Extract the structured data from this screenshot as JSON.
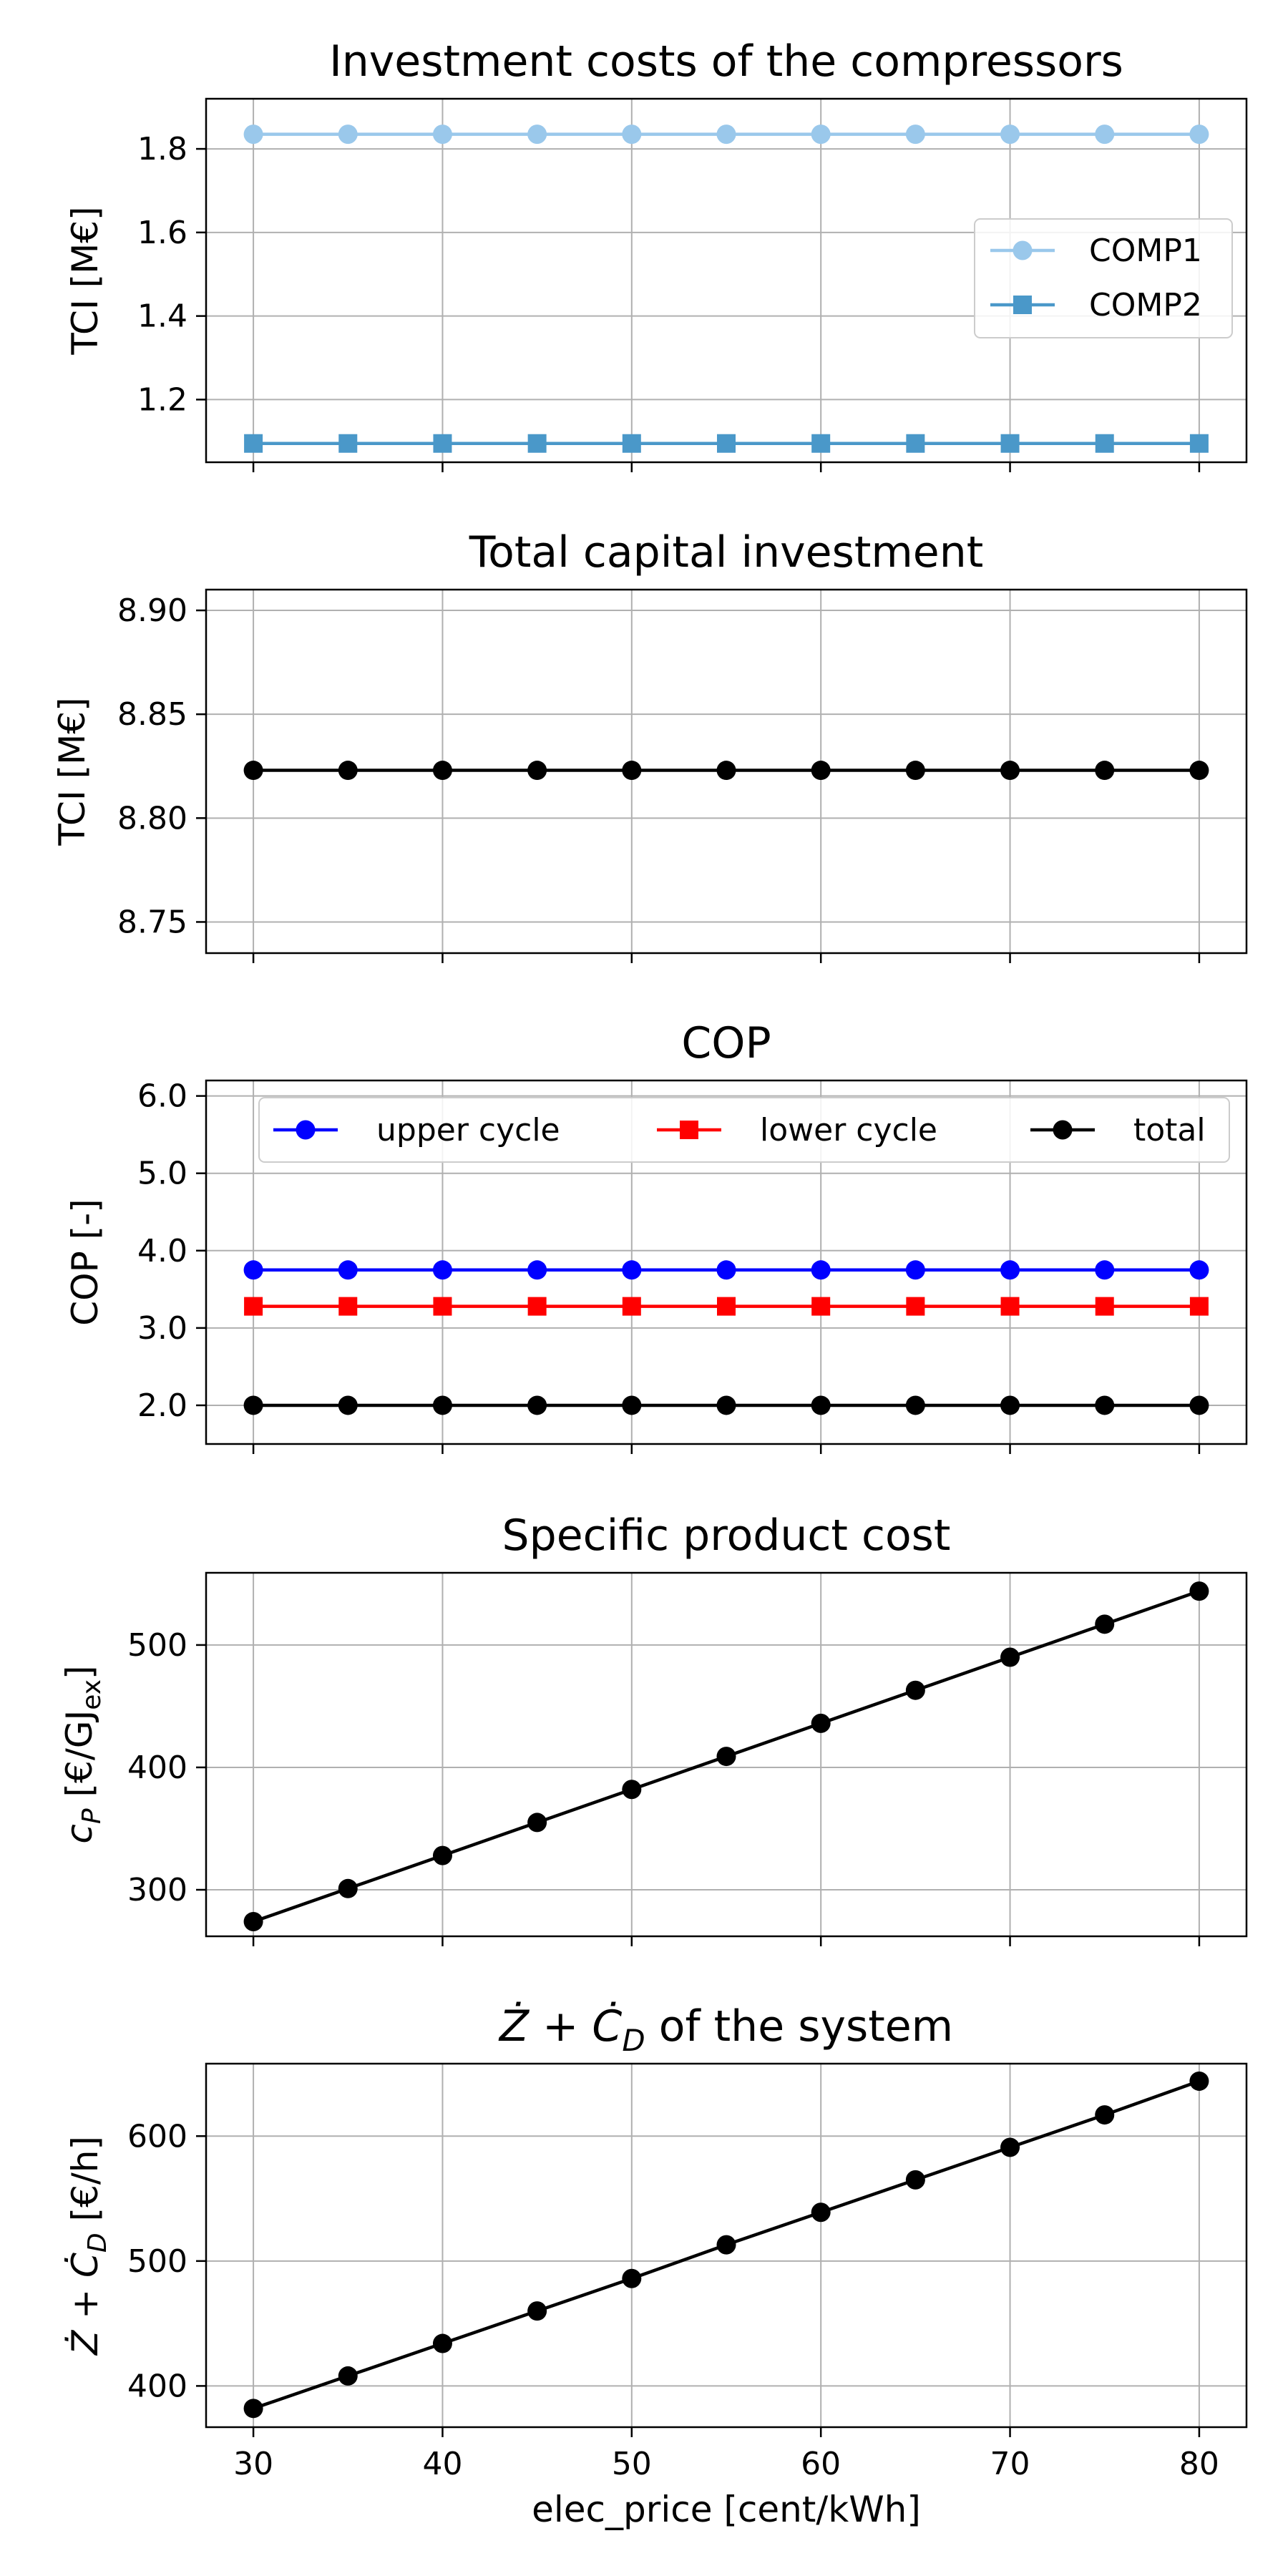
{
  "chart_data": [
    {
      "type": "line",
      "title": "Investment costs of the compressors",
      "xlabel": "",
      "ylabel": "TCI [M€]",
      "x": [
        30,
        35,
        40,
        45,
        50,
        55,
        60,
        65,
        70,
        75,
        80
      ],
      "xlim": [
        27.5,
        82.5
      ],
      "ylim": [
        1.05,
        1.92
      ],
      "yticks": [
        "1.2",
        "1.4",
        "1.6",
        "1.8"
      ],
      "xticks": [
        30,
        40,
        50,
        60,
        70,
        80
      ],
      "xticklabels_visible": false,
      "grid": true,
      "legend": "center-right",
      "series": [
        {
          "name": "COMP1",
          "color": "#9ac8eb",
          "marker": "circle",
          "values": [
            1.835,
            1.835,
            1.835,
            1.835,
            1.835,
            1.835,
            1.835,
            1.835,
            1.835,
            1.835,
            1.835
          ]
        },
        {
          "name": "COMP2",
          "color": "#4a98c9",
          "marker": "square",
          "values": [
            1.095,
            1.095,
            1.095,
            1.095,
            1.095,
            1.095,
            1.095,
            1.095,
            1.095,
            1.095,
            1.095
          ]
        }
      ]
    },
    {
      "type": "line",
      "title": "Total capital investment",
      "xlabel": "",
      "ylabel": "TCI [M€]",
      "x": [
        30,
        35,
        40,
        45,
        50,
        55,
        60,
        65,
        70,
        75,
        80
      ],
      "xlim": [
        27.5,
        82.5
      ],
      "ylim": [
        8.735,
        8.91
      ],
      "yticks": [
        "8.75",
        "8.80",
        "8.85",
        "8.90"
      ],
      "xticks": [
        30,
        40,
        50,
        60,
        70,
        80
      ],
      "xticklabels_visible": false,
      "grid": true,
      "legend": "none",
      "series": [
        {
          "color": "#000000",
          "marker": "circle",
          "values": [
            8.823,
            8.823,
            8.823,
            8.823,
            8.823,
            8.823,
            8.823,
            8.823,
            8.823,
            8.823,
            8.823
          ]
        }
      ]
    },
    {
      "type": "line",
      "title": "COP",
      "xlabel": "",
      "ylabel": "COP [-]",
      "x": [
        30,
        35,
        40,
        45,
        50,
        55,
        60,
        65,
        70,
        75,
        80
      ],
      "xlim": [
        27.5,
        82.5
      ],
      "ylim": [
        1.5,
        6.2
      ],
      "yticks": [
        "2.0",
        "3.0",
        "4.0",
        "5.0",
        "6.0"
      ],
      "xticks": [
        30,
        40,
        50,
        60,
        70,
        80
      ],
      "xticklabels_visible": false,
      "grid": true,
      "legend": "top (3 columns)",
      "series": [
        {
          "name": "upper cycle",
          "color": "#0000ff",
          "marker": "circle",
          "values": [
            3.75,
            3.75,
            3.75,
            3.75,
            3.75,
            3.75,
            3.75,
            3.75,
            3.75,
            3.75,
            3.75
          ]
        },
        {
          "name": "lower cycle",
          "color": "#ff0000",
          "marker": "square",
          "values": [
            3.28,
            3.28,
            3.28,
            3.28,
            3.28,
            3.28,
            3.28,
            3.28,
            3.28,
            3.28,
            3.28
          ]
        },
        {
          "name": "total",
          "color": "#000000",
          "marker": "circle",
          "values": [
            2.0,
            2.0,
            2.0,
            2.0,
            2.0,
            2.0,
            2.0,
            2.0,
            2.0,
            2.0,
            2.0
          ]
        }
      ]
    },
    {
      "type": "line",
      "title": "Specific product cost",
      "xlabel": "",
      "ylabel": "c_P [€/GJ_ex]",
      "x": [
        30,
        35,
        40,
        45,
        50,
        55,
        60,
        65,
        70,
        75,
        80
      ],
      "xlim": [
        27.5,
        82.5
      ],
      "ylim": [
        262,
        559
      ],
      "yticks": [
        "300",
        "400",
        "500"
      ],
      "xticks": [
        30,
        40,
        50,
        60,
        70,
        80
      ],
      "xticklabels_visible": false,
      "grid": true,
      "legend": "none",
      "series": [
        {
          "color": "#000000",
          "marker": "circle",
          "values": [
            274,
            301,
            328,
            355,
            382,
            409,
            436,
            463,
            490,
            517,
            544
          ]
        }
      ]
    },
    {
      "type": "line",
      "title": "Ż + Ċ_D of the system",
      "xlabel": "elec_price [cent/kWh]",
      "ylabel": "Ż + Ċ_D [€/h]",
      "x": [
        30,
        35,
        40,
        45,
        50,
        55,
        60,
        65,
        70,
        75,
        80
      ],
      "xlim": [
        27.5,
        82.5
      ],
      "ylim": [
        367,
        658
      ],
      "yticks": [
        "400",
        "500",
        "600"
      ],
      "xticks": [
        30,
        40,
        50,
        60,
        70,
        80
      ],
      "xticklabels": [
        "30",
        "40",
        "50",
        "60",
        "70",
        "80"
      ],
      "xticklabels_visible": true,
      "grid": true,
      "legend": "none",
      "series": [
        {
          "color": "#000000",
          "marker": "circle",
          "values": [
            382,
            408,
            434,
            460,
            486,
            513,
            539,
            565,
            591,
            617,
            644
          ]
        }
      ]
    }
  ]
}
